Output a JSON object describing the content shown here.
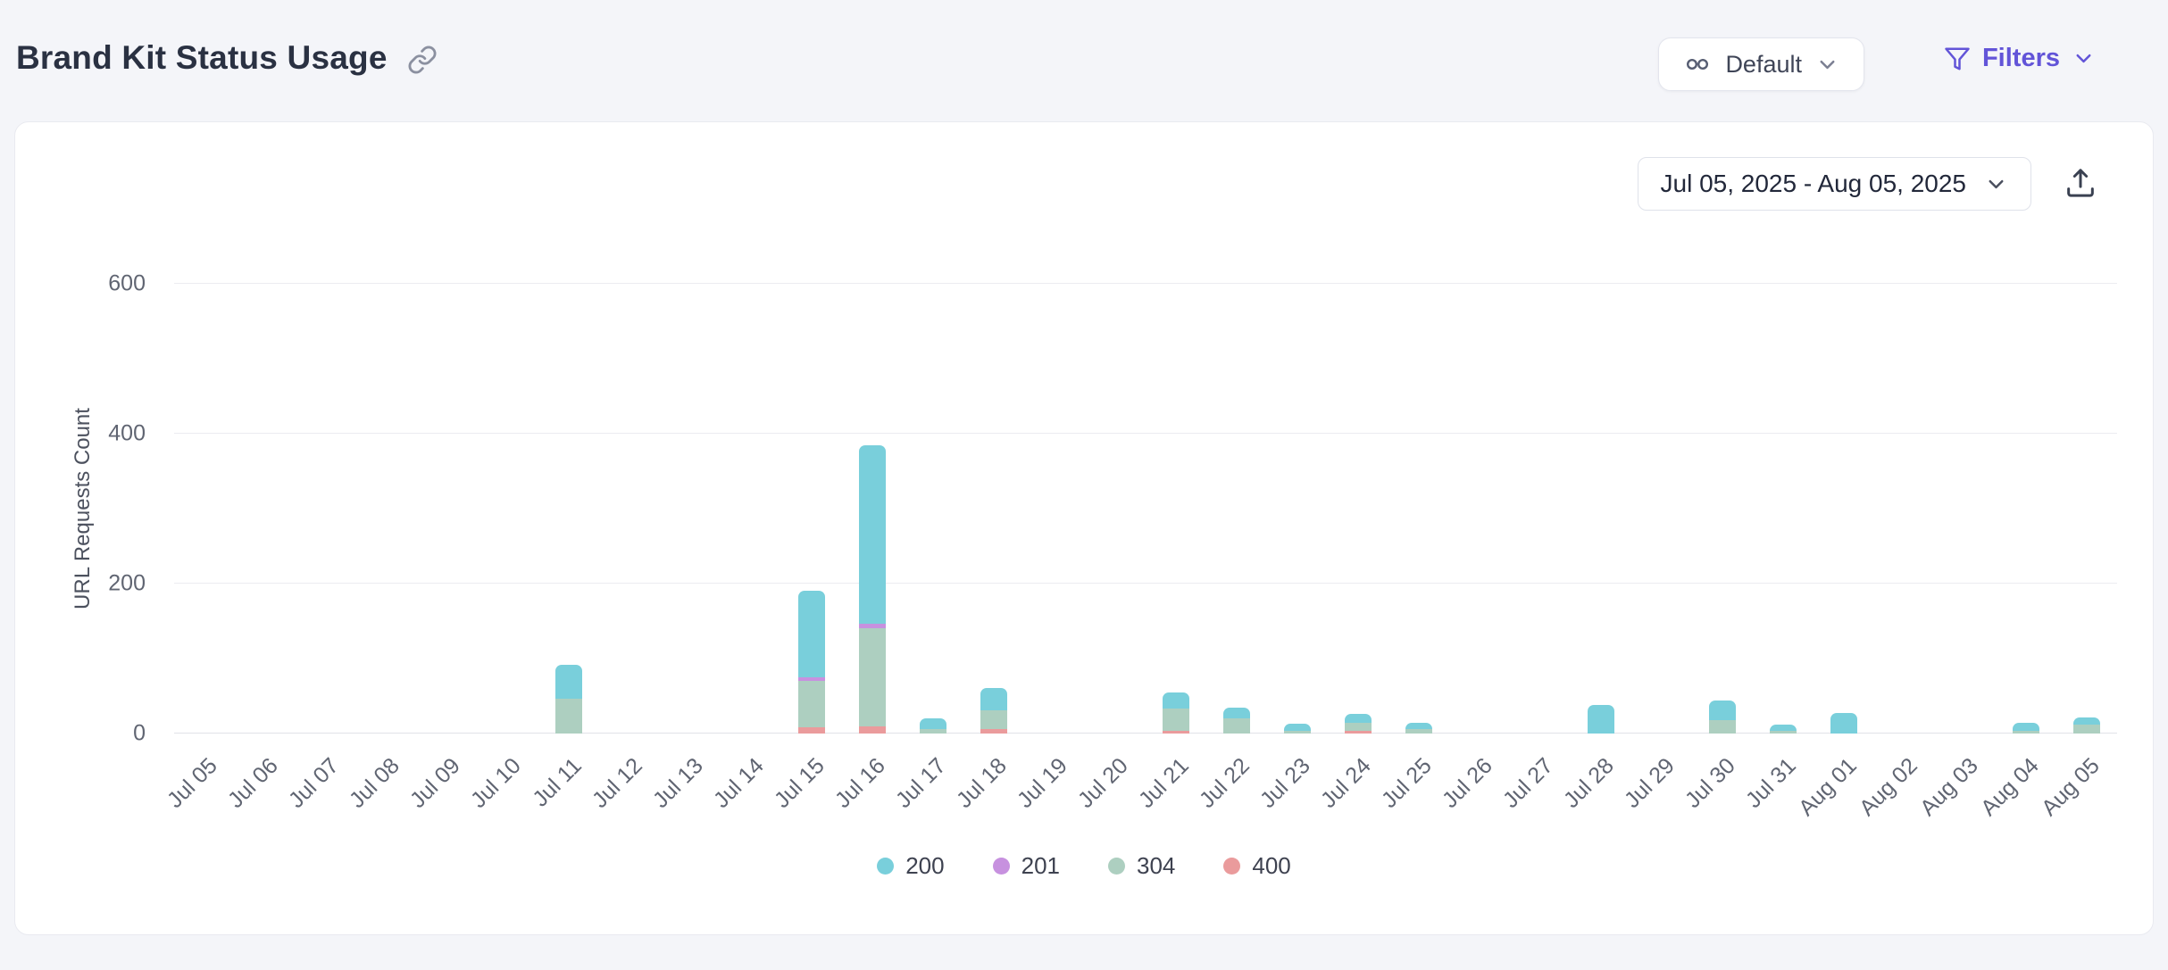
{
  "header": {
    "title": "Brand Kit Status Usage",
    "title_link_icon": "link-icon",
    "brand_kit_selector": {
      "label": "Default",
      "icon": "brand-kit-icon",
      "chevron_icon": "chevron-down-icon"
    },
    "filters": {
      "label": "Filters",
      "icon": "filter-funnel-icon",
      "chevron_icon": "chevron-down-icon",
      "accent_color": "#6254D8"
    }
  },
  "card": {
    "date_range": "Jul 05, 2025 - Aug 05, 2025",
    "date_chevron_icon": "chevron-down-icon",
    "export_icon": "export-upload-icon"
  },
  "chart_data": {
    "type": "bar",
    "stacked": true,
    "title": "",
    "xlabel": "",
    "ylabel": "URL Requests Count",
    "ylim": [
      0,
      600
    ],
    "yticks": [
      0,
      200,
      400,
      600
    ],
    "grid": "horizontal",
    "legend_position": "bottom",
    "categories": [
      "Jul 05",
      "Jul 06",
      "Jul 07",
      "Jul 08",
      "Jul 09",
      "Jul 10",
      "Jul 11",
      "Jul 12",
      "Jul 13",
      "Jul 14",
      "Jul 15",
      "Jul 16",
      "Jul 17",
      "Jul 18",
      "Jul 19",
      "Jul 20",
      "Jul 21",
      "Jul 22",
      "Jul 23",
      "Jul 24",
      "Jul 25",
      "Jul 26",
      "Jul 27",
      "Jul 28",
      "Jul 29",
      "Jul 30",
      "Jul 31",
      "Aug 01",
      "Aug 02",
      "Aug 03",
      "Aug 04",
      "Aug 05"
    ],
    "series": [
      {
        "name": "200",
        "color": "#79CFDB",
        "values": [
          0,
          0,
          0,
          0,
          0,
          0,
          45,
          0,
          0,
          0,
          115,
          238,
          14,
          30,
          0,
          0,
          22,
          15,
          10,
          12,
          8,
          0,
          0,
          38,
          0,
          26,
          8,
          27,
          0,
          0,
          10,
          10
        ]
      },
      {
        "name": "201",
        "color": "#C791DF",
        "values": [
          0,
          0,
          0,
          0,
          0,
          0,
          0,
          0,
          0,
          0,
          5,
          7,
          0,
          0,
          0,
          0,
          0,
          0,
          0,
          0,
          0,
          0,
          0,
          0,
          0,
          0,
          0,
          0,
          0,
          0,
          0,
          0
        ]
      },
      {
        "name": "304",
        "color": "#ADCFC0",
        "values": [
          0,
          0,
          0,
          0,
          0,
          0,
          47,
          0,
          0,
          0,
          62,
          130,
          6,
          25,
          0,
          0,
          30,
          20,
          3,
          10,
          6,
          0,
          0,
          0,
          0,
          18,
          4,
          0,
          0,
          0,
          4,
          12
        ]
      },
      {
        "name": "400",
        "color": "#EA9B9C",
        "values": [
          0,
          0,
          0,
          0,
          0,
          0,
          0,
          0,
          0,
          0,
          8,
          10,
          0,
          6,
          0,
          0,
          3,
          0,
          0,
          4,
          0,
          0,
          0,
          0,
          0,
          0,
          0,
          0,
          0,
          0,
          0,
          0
        ]
      }
    ]
  }
}
